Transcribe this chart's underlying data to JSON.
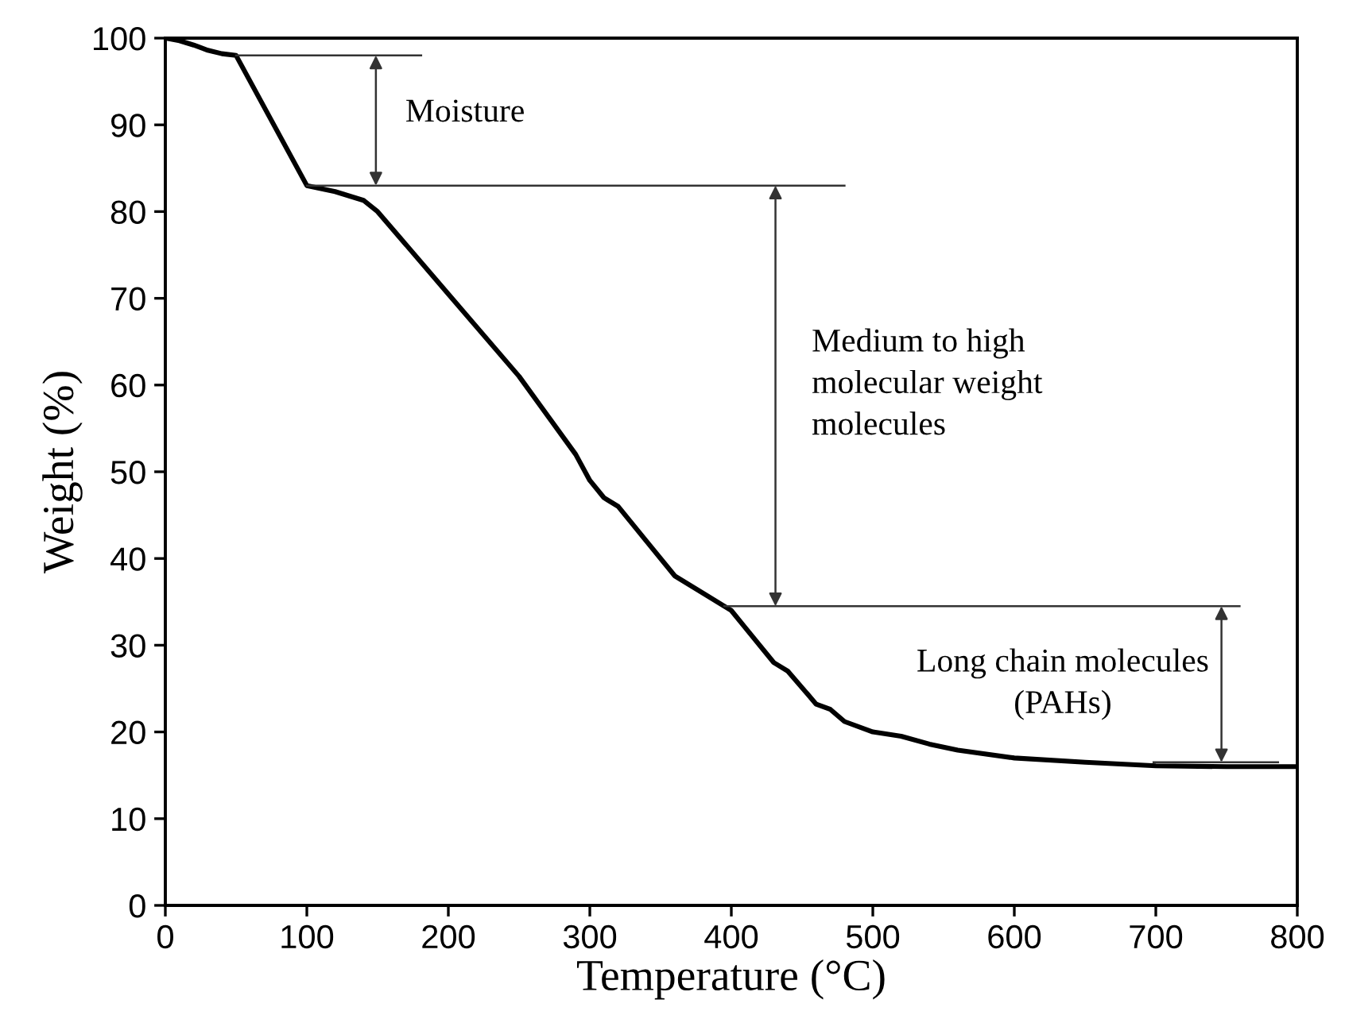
{
  "chart_data": {
    "type": "line",
    "xlabel": "Temperature (°C)",
    "ylabel": "Weight (%)",
    "x": [
      0,
      10,
      20,
      30,
      40,
      50,
      100,
      120,
      140,
      150,
      200,
      250,
      290,
      300,
      310,
      320,
      340,
      360,
      380,
      400,
      410,
      430,
      440,
      460,
      470,
      480,
      500,
      520,
      540,
      560,
      600,
      650,
      700,
      750,
      800
    ],
    "series": [
      {
        "color": "#000000",
        "values": [
          100,
          99.7,
          99.2,
          98.6,
          98.2,
          98,
          83,
          82.3,
          81.3,
          80,
          70.5,
          61,
          52,
          49,
          47,
          46,
          42,
          38,
          36,
          34,
          32,
          28,
          27,
          23.2,
          22.6,
          21.2,
          20,
          19.5,
          18.6,
          17.9,
          17,
          16.5,
          16.1,
          16,
          16
        ]
      }
    ],
    "xlim": [
      0,
      800
    ],
    "ylim": [
      0,
      100
    ],
    "xticks": [
      0,
      100,
      200,
      300,
      400,
      500,
      600,
      700,
      800
    ],
    "yticks": [
      0,
      10,
      20,
      30,
      40,
      50,
      60,
      70,
      80,
      90,
      100
    ],
    "ref_lines": [
      {
        "axis": "y",
        "value": 98,
        "color": "#333333"
      },
      {
        "axis": "y",
        "value": 83,
        "color": "#333333"
      },
      {
        "axis": "y",
        "value": 34.5,
        "color": "#333333"
      },
      {
        "axis": "y",
        "value": 16.5,
        "color": "#333333"
      }
    ],
    "annotations": [
      "Moisture",
      "Medium to high\nmolecular weight\nmolecules",
      "Long chain molecules\n(PAHs)"
    ],
    "grid": false,
    "legend": false,
    "marker": "none",
    "line_style": "solid"
  }
}
